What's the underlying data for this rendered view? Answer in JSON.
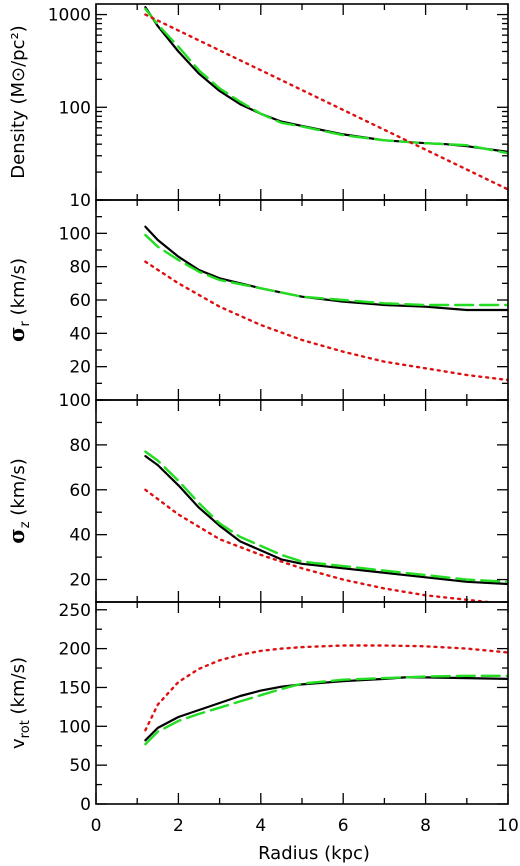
{
  "chart_data": [
    {
      "type": "line",
      "yscale": "log",
      "xlim": [
        0,
        10
      ],
      "ylim": [
        10,
        1300
      ],
      "ylabel": "Density (M⊙/pc²)",
      "xlabel": "",
      "ytick_labels": [
        "10",
        "100",
        "1000"
      ],
      "ytick_values": [
        10,
        100,
        1000
      ],
      "series": [
        {
          "style": "solid",
          "color": "#000000",
          "x": [
            1.2,
            1.5,
            2.0,
            2.5,
            3.0,
            3.5,
            4.0,
            4.5,
            5.0,
            6.0,
            7.0,
            8.0,
            8.5,
            9.0,
            10.0
          ],
          "y": [
            1200,
            750,
            400,
            230,
            150,
            108,
            85,
            70,
            63,
            51,
            44,
            41,
            40,
            38,
            33
          ]
        },
        {
          "style": "dashed",
          "color": "#22dd22",
          "x": [
            1.2,
            1.5,
            2.0,
            2.5,
            3.0,
            3.5,
            4.0,
            4.5,
            5.0,
            6.0,
            7.0,
            8.0,
            9.0,
            10.0
          ],
          "y": [
            1150,
            780,
            450,
            250,
            160,
            115,
            85,
            68,
            62,
            50,
            44,
            41,
            39,
            32
          ]
        },
        {
          "style": "dotted",
          "color": "#dd1111",
          "x": [
            1.2,
            10.0
          ],
          "y": [
            1000,
            13
          ]
        }
      ]
    },
    {
      "type": "line",
      "xlim": [
        0,
        10
      ],
      "ylim": [
        0,
        120
      ],
      "ylabel_symbol": "σ",
      "ylabel_sub": "r",
      "ylabel_unit": "(km/s)",
      "ytick_labels": [
        "20",
        "40",
        "60",
        "80",
        "100"
      ],
      "ytick_values": [
        20,
        40,
        60,
        80,
        100
      ],
      "series": [
        {
          "style": "solid",
          "color": "#000000",
          "x": [
            1.2,
            1.5,
            2.0,
            2.5,
            3.0,
            4.0,
            5.0,
            6.0,
            7.0,
            8.0,
            9.0,
            10.0
          ],
          "y": [
            104,
            96,
            86,
            78,
            73,
            67,
            62,
            59,
            57,
            56,
            54,
            54
          ]
        },
        {
          "style": "dashed",
          "color": "#22dd22",
          "x": [
            1.2,
            1.5,
            2.0,
            2.5,
            3.0,
            4.0,
            5.0,
            6.0,
            7.0,
            8.0,
            9.0,
            10.0
          ],
          "y": [
            99,
            92,
            84,
            77,
            72,
            67,
            62,
            60,
            58,
            57,
            57,
            57
          ]
        },
        {
          "style": "dotted",
          "color": "#dd1111",
          "x": [
            1.2,
            2.0,
            3.0,
            4.0,
            5.0,
            6.0,
            7.0,
            8.0,
            9.0,
            10.0
          ],
          "y": [
            83,
            70,
            56,
            45,
            36,
            29,
            23,
            19,
            15,
            12
          ]
        }
      ]
    },
    {
      "type": "line",
      "xlim": [
        0,
        10
      ],
      "ylim": [
        10,
        100
      ],
      "ylabel_symbol": "σ",
      "ylabel_sub": "z",
      "ylabel_unit": "(km/s)",
      "ytick_labels": [
        "20",
        "40",
        "60",
        "80",
        "100"
      ],
      "ytick_values": [
        20,
        40,
        60,
        80,
        100
      ],
      "series": [
        {
          "style": "solid",
          "color": "#000000",
          "x": [
            1.2,
            1.5,
            2.0,
            2.5,
            3.0,
            3.5,
            4.0,
            4.5,
            5.0,
            6.0,
            7.0,
            8.0,
            9.0,
            10.0
          ],
          "y": [
            75,
            71,
            62,
            52,
            44,
            37,
            33,
            29,
            27,
            25,
            23,
            21,
            19,
            18
          ]
        },
        {
          "style": "dashed",
          "color": "#22dd22",
          "x": [
            1.2,
            1.5,
            2.0,
            2.5,
            3.0,
            3.5,
            4.0,
            4.5,
            5.0,
            6.0,
            7.0,
            8.0,
            9.0,
            10.0
          ],
          "y": [
            77,
            73,
            64,
            54,
            45,
            39,
            35,
            31,
            28,
            26,
            24,
            22,
            20,
            19
          ]
        },
        {
          "style": "dotted",
          "color": "#dd1111",
          "x": [
            1.2,
            2.0,
            3.0,
            4.0,
            5.0,
            6.0,
            7.0,
            8.0,
            9.0,
            10.0
          ],
          "y": [
            60,
            49,
            38,
            31,
            25,
            20,
            16,
            13,
            11,
            9
          ]
        }
      ]
    },
    {
      "type": "line",
      "xlim": [
        0,
        10
      ],
      "ylim": [
        0,
        260
      ],
      "ylabel": "v_rot (km/s)",
      "ylabel_main": "v",
      "ylabel_sub": "rot",
      "ylabel_unit": "(km/s)",
      "xlabel": "Radius (kpc)",
      "xtick_labels": [
        "0",
        "2",
        "4",
        "6",
        "8",
        "10"
      ],
      "xtick_values": [
        0,
        2,
        4,
        6,
        8,
        10
      ],
      "ytick_labels": [
        "0",
        "50",
        "100",
        "150",
        "200",
        "250"
      ],
      "ytick_values": [
        0,
        50,
        100,
        150,
        200,
        250
      ],
      "series": [
        {
          "style": "solid",
          "color": "#000000",
          "x": [
            1.2,
            1.5,
            2.0,
            2.5,
            3.0,
            3.5,
            4.0,
            4.5,
            5.0,
            6.0,
            7.0,
            7.5,
            8.0,
            9.0,
            10.0
          ],
          "y": [
            82,
            98,
            112,
            121,
            130,
            139,
            146,
            151,
            154,
            158,
            161,
            163,
            163,
            162,
            161
          ]
        },
        {
          "style": "dashed",
          "color": "#22dd22",
          "x": [
            1.2,
            1.5,
            2.0,
            2.5,
            3.0,
            3.5,
            4.0,
            4.5,
            5.0,
            6.0,
            7.0,
            8.0,
            9.0,
            10.0
          ],
          "y": [
            77,
            93,
            107,
            116,
            124,
            132,
            140,
            148,
            155,
            160,
            162,
            164,
            165,
            165
          ]
        },
        {
          "style": "dotted",
          "color": "#dd1111",
          "x": [
            1.2,
            1.5,
            2.0,
            2.5,
            3.0,
            3.5,
            4.0,
            4.5,
            5.0,
            5.5,
            6.0,
            7.0,
            8.0,
            9.0,
            10.0
          ],
          "y": [
            95,
            128,
            157,
            174,
            185,
            192,
            197,
            200,
            202,
            203,
            204,
            204,
            203,
            200,
            195
          ]
        }
      ]
    }
  ]
}
